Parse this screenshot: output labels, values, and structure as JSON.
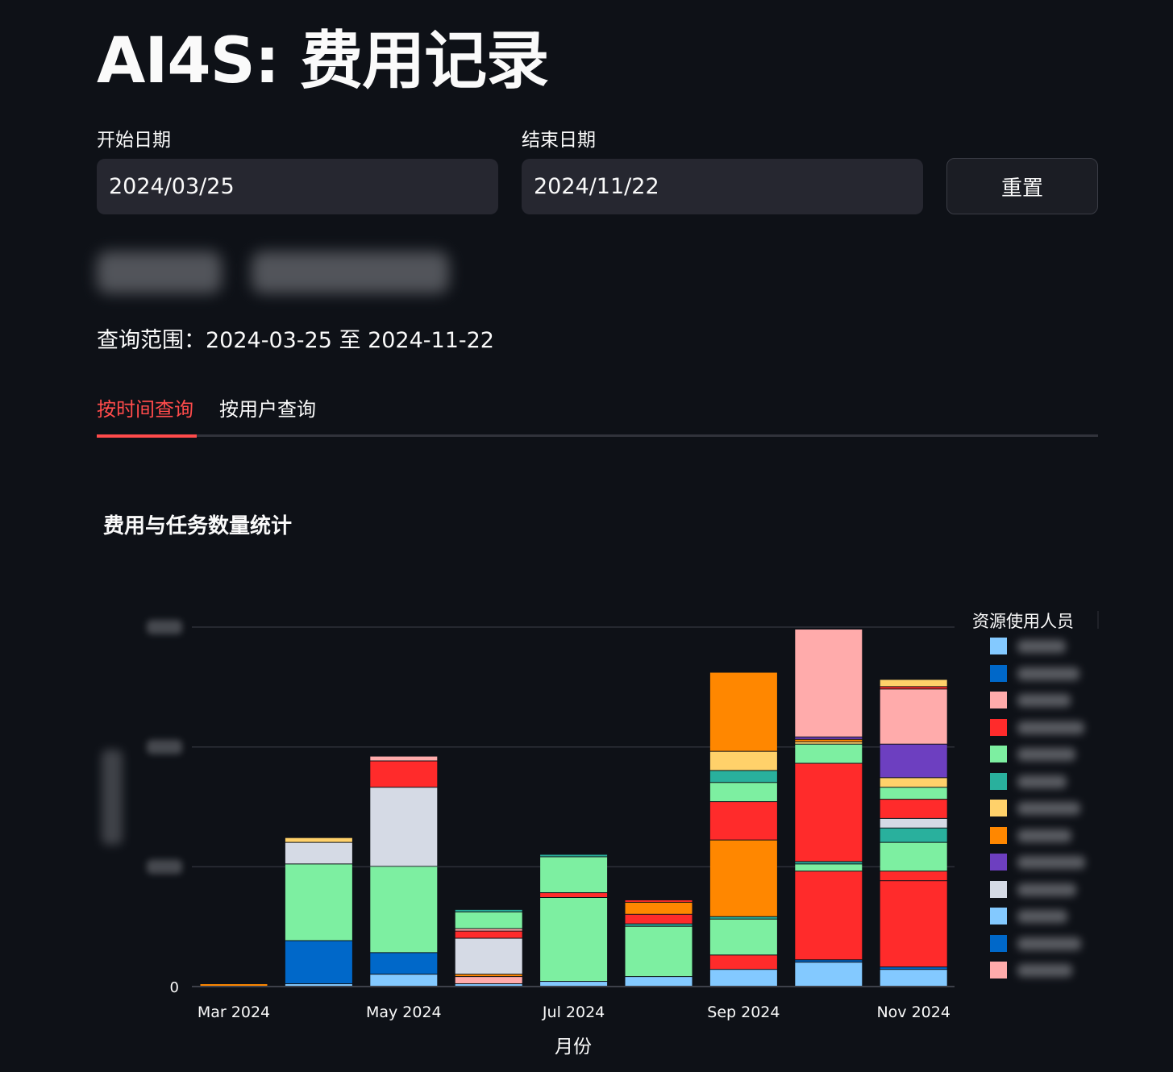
{
  "header": {
    "title": "AI4S: 费用记录"
  },
  "filters": {
    "start_label": "开始日期",
    "start_value": "2024/03/25",
    "end_label": "结束日期",
    "end_value": "2024/11/22",
    "reset_label": "重置"
  },
  "query_range": "查询范围：2024-03-25 至 2024-11-22",
  "tabs": [
    {
      "label": "按时间查询",
      "active": true
    },
    {
      "label": "按用户查询",
      "active": false
    }
  ],
  "chart_data": {
    "type": "bar",
    "stacked": true,
    "title": "费用与任务数量统计",
    "xlabel": "月份",
    "ylabel": "",
    "x_tick_labels": [
      "Mar 2024",
      "May 2024",
      "Jul 2024",
      "Sep 2024",
      "Nov 2024"
    ],
    "y_tick_labels": [
      "0"
    ],
    "ylim": [
      0,
      1.5
    ],
    "y_ticks": [
      0,
      0.5,
      1,
      1.5
    ],
    "grid": true,
    "legend_title": "资源使用人员",
    "legend_placement": "right",
    "categories": [
      "Mar 2024",
      "Apr 2024",
      "May 2024",
      "Jun 2024",
      "Jul 2024",
      "Aug 2024",
      "Sep 2024",
      "Oct 2024",
      "Nov 2024"
    ],
    "series": [
      {
        "color": "#83c9ff",
        "values": [
          0,
          0.01,
          0.05,
          0.01,
          0.02,
          0.04,
          0.07,
          0.1,
          0.07
        ]
      },
      {
        "color": "#0068c9",
        "values": [
          0,
          0.18,
          0.09,
          0,
          0,
          0,
          0,
          0.01,
          0.01
        ]
      },
      {
        "color": "#ffabab",
        "values": [
          0,
          0,
          0,
          0.03,
          0,
          0,
          0,
          0,
          0
        ]
      },
      {
        "color": "#ff2b2b",
        "values": [
          0,
          0,
          0,
          0,
          0,
          0,
          0.06,
          0.37,
          0.36
        ]
      },
      {
        "color": "#7defa1",
        "values": [
          0,
          0.32,
          0.36,
          0,
          0.35,
          0.21,
          0.15,
          0.03,
          0
        ]
      },
      {
        "color": "#29b09d",
        "values": [
          0,
          0,
          0,
          0,
          0,
          0.01,
          0.01,
          0.01,
          0
        ]
      },
      {
        "color": "#ffd16a",
        "values": [
          0,
          0,
          0,
          0,
          0,
          0,
          0,
          0,
          0
        ]
      },
      {
        "color": "#ff8700",
        "values": [
          0.01,
          0,
          0,
          0.01,
          0,
          0,
          0.32,
          0,
          0
        ]
      },
      {
        "color": "#6d3fc0",
        "values": [
          0,
          0,
          0,
          0,
          0,
          0,
          0,
          0,
          0
        ]
      },
      {
        "color": "#d5dae5",
        "values": [
          0,
          0,
          0,
          0.15,
          0,
          0,
          0,
          0,
          0
        ]
      },
      {
        "color": "#ff2b2b",
        "values": [
          0,
          0,
          0,
          0.03,
          0.02,
          0,
          0.16,
          0.41,
          0.04
        ]
      },
      {
        "color": "#ffabab",
        "values": [
          0,
          0,
          0,
          0.01,
          0,
          0,
          0,
          0,
          0
        ]
      },
      {
        "color": "#7defa1",
        "values": [
          0,
          0,
          0,
          0.07,
          0.15,
          0,
          0.08,
          0.08,
          0.12
        ]
      },
      {
        "color": "#29b09d",
        "values": [
          0,
          0,
          0,
          0.01,
          0.01,
          0,
          0.05,
          0,
          0.06
        ]
      },
      {
        "color": "#d5dae5",
        "values": [
          0,
          0.09,
          0.33,
          0,
          0,
          0,
          0,
          0,
          0.04
        ]
      },
      {
        "color": "#ff2b2b",
        "values": [
          0,
          0,
          0.11,
          0,
          0,
          0.04,
          0,
          0,
          0.08
        ]
      },
      {
        "color": "#7defa1",
        "values": [
          0,
          0,
          0,
          0,
          0,
          0,
          0,
          0,
          0.05
        ]
      },
      {
        "color": "#ffd16a",
        "values": [
          0,
          0.02,
          0,
          0,
          0,
          0,
          0.08,
          0.01,
          0.04
        ]
      },
      {
        "color": "#ff8700",
        "values": [
          0,
          0,
          0,
          0,
          0,
          0.05,
          0.33,
          0.01,
          0
        ]
      },
      {
        "color": "#6d3fc0",
        "values": [
          0,
          0,
          0,
          0,
          0,
          0,
          0,
          0.01,
          0.14
        ]
      },
      {
        "color": "#ffabab",
        "values": [
          0,
          0,
          0.02,
          0,
          0,
          0,
          0,
          0.45,
          0.23
        ]
      },
      {
        "color": "#ff2b2b",
        "values": [
          0,
          0,
          0,
          0,
          0,
          0.01,
          0,
          0,
          0.01
        ]
      },
      {
        "color": "#ffd16a",
        "values": [
          0,
          0,
          0,
          0,
          0,
          0,
          0,
          0,
          0.03
        ]
      }
    ],
    "legend_colors": [
      "#83c9ff",
      "#0068c9",
      "#ffabab",
      "#ff2b2b",
      "#7defa1",
      "#29b09d",
      "#ffd16a",
      "#ff8700",
      "#6d3fc0",
      "#d5dae5",
      "#83c9ff",
      "#0068c9",
      "#ffabab"
    ]
  }
}
